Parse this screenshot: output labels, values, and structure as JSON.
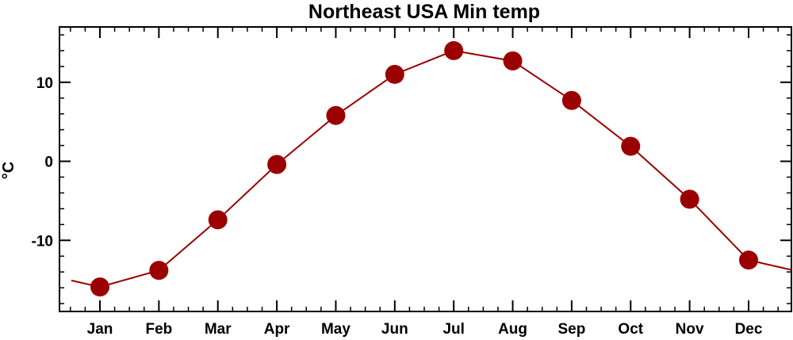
{
  "chart_data": {
    "type": "line",
    "title": "Northeast USA Min temp",
    "xlabel": "",
    "ylabel": "°C",
    "categories": [
      "Jan",
      "Feb",
      "Mar",
      "Apr",
      "May",
      "Jun",
      "Jul",
      "Aug",
      "Sep",
      "Oct",
      "Nov",
      "Dec"
    ],
    "series": [
      {
        "values": [
          -15.9,
          -13.8,
          -7.4,
          -0.4,
          5.8,
          11.0,
          14.0,
          12.7,
          7.7,
          1.9,
          -4.8,
          -12.5
        ]
      }
    ],
    "line_extends_past_ends": {
      "before_jan": -14.2,
      "after_dec": -14.2
    },
    "ylim": [
      -19,
      17
    ],
    "yticks": [
      -10,
      0,
      10
    ],
    "yticks_labels": [
      "-10",
      "0",
      "10"
    ],
    "grid": false,
    "legend": "none",
    "colors": {
      "series": "#9b0000",
      "marker": "#9b0000",
      "axes": "#000000"
    }
  }
}
